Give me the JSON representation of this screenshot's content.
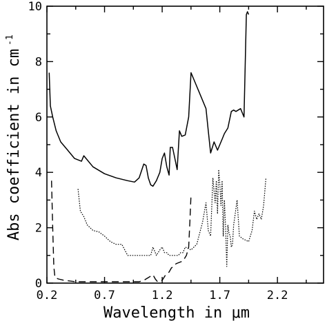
{
  "chart_data": {
    "type": "line",
    "title": "",
    "xlabel": "Wavelength in μm",
    "ylabel": "Abs coefficient in cm",
    "ylabel_superscript": "-1",
    "xlim": [
      0.2,
      2.6
    ],
    "ylim": [
      0,
      10
    ],
    "xticks": [
      0.2,
      0.7,
      1.2,
      1.7,
      2.2
    ],
    "xtick_labels": [
      "0.2",
      "0.7",
      "1.2",
      "1.7",
      "2.2"
    ],
    "yticks": [
      0,
      2,
      4,
      6,
      8,
      10
    ],
    "ytick_labels": [
      "0",
      "2",
      "4",
      "6",
      "8",
      "10"
    ],
    "grid": false,
    "legend": "none",
    "series": [
      {
        "style": "solid",
        "x": [
          0.22,
          0.23,
          0.25,
          0.28,
          0.32,
          0.38,
          0.44,
          0.5,
          0.52,
          0.54,
          0.6,
          0.7,
          0.8,
          0.9,
          0.96,
          1.0,
          1.04,
          1.06,
          1.08,
          1.1,
          1.12,
          1.15,
          1.18,
          1.2,
          1.22,
          1.24,
          1.26,
          1.27,
          1.29,
          1.31,
          1.33,
          1.35,
          1.37,
          1.4,
          1.43,
          1.45,
          1.48,
          1.52,
          1.58,
          1.6,
          1.62,
          1.65,
          1.68,
          1.72,
          1.74,
          1.77,
          1.8,
          1.82,
          1.84,
          1.88,
          1.91,
          1.93,
          1.94,
          1.95
        ],
        "y": [
          7.6,
          6.4,
          6.0,
          5.5,
          5.1,
          4.8,
          4.5,
          4.4,
          4.6,
          4.5,
          4.2,
          3.95,
          3.8,
          3.7,
          3.65,
          3.8,
          4.3,
          4.25,
          3.8,
          3.55,
          3.5,
          3.7,
          4.0,
          4.5,
          4.7,
          4.2,
          3.9,
          4.9,
          4.9,
          4.5,
          4.1,
          5.5,
          5.3,
          5.35,
          6.0,
          7.6,
          7.3,
          6.9,
          6.3,
          5.5,
          4.7,
          5.1,
          4.8,
          5.2,
          5.4,
          5.6,
          6.2,
          6.25,
          6.2,
          6.3,
          6.0,
          9.7,
          9.8,
          9.7
        ]
      },
      {
        "style": "dotted",
        "x": [
          0.47,
          0.49,
          0.52,
          0.55,
          0.6,
          0.65,
          0.7,
          0.75,
          0.8,
          0.85,
          0.9,
          1.0,
          1.05,
          1.1,
          1.12,
          1.14,
          1.15,
          1.18,
          1.2,
          1.22,
          1.24,
          1.26,
          1.3,
          1.34,
          1.36,
          1.38,
          1.4,
          1.45,
          1.5,
          1.55,
          1.58,
          1.6,
          1.62,
          1.64,
          1.66,
          1.67,
          1.68,
          1.69,
          1.7,
          1.71,
          1.72,
          1.73,
          1.74,
          1.75,
          1.76,
          1.77,
          1.78,
          1.79,
          1.8,
          1.81,
          1.82,
          1.85,
          1.87,
          1.9,
          1.95,
          1.98,
          2.0,
          2.02,
          2.04,
          2.06,
          2.08,
          2.1
        ],
        "y": [
          3.4,
          2.6,
          2.4,
          2.1,
          1.9,
          1.85,
          1.7,
          1.5,
          1.4,
          1.4,
          1.0,
          1.0,
          1.0,
          1.0,
          1.3,
          1.1,
          1.0,
          1.2,
          1.3,
          1.1,
          1.1,
          1.0,
          1.0,
          1.0,
          1.1,
          1.1,
          1.3,
          1.2,
          1.4,
          2.2,
          2.9,
          1.9,
          1.7,
          3.8,
          2.9,
          3.7,
          2.5,
          4.1,
          3.6,
          2.8,
          3.7,
          1.7,
          3.0,
          2.0,
          0.6,
          2.1,
          1.8,
          1.7,
          1.3,
          1.4,
          2.1,
          3.0,
          1.7,
          1.6,
          1.5,
          1.9,
          2.6,
          2.3,
          2.5,
          2.3,
          2.8,
          3.8
        ]
      },
      {
        "style": "dashed",
        "x": [
          0.24,
          0.25,
          0.26,
          0.27,
          0.3,
          0.35,
          0.45,
          0.6,
          0.8,
          0.9,
          1.0,
          1.04,
          1.08,
          1.12,
          1.14,
          1.16,
          1.2,
          1.23,
          1.26,
          1.28,
          1.3,
          1.32,
          1.35,
          1.38,
          1.41,
          1.43,
          1.44,
          1.45
        ],
        "y": [
          3.7,
          2.0,
          0.6,
          0.2,
          0.15,
          0.1,
          0.05,
          0.05,
          0.05,
          0.05,
          0.05,
          0.1,
          0.2,
          0.3,
          0.15,
          0.05,
          0.1,
          0.3,
          0.4,
          0.55,
          0.6,
          0.7,
          0.75,
          0.8,
          1.0,
          1.3,
          2.2,
          3.2
        ]
      }
    ]
  }
}
